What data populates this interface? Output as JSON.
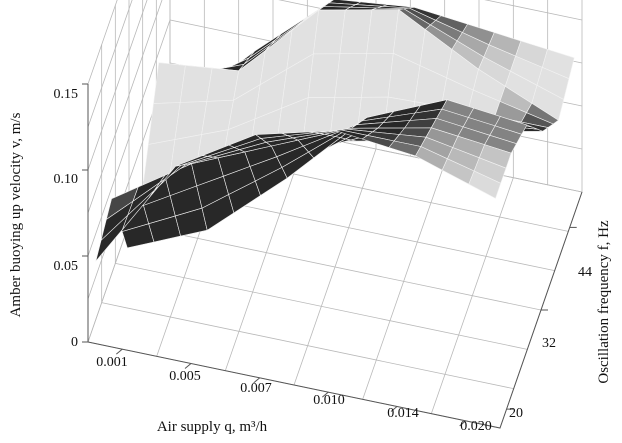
{
  "chart_data": {
    "type": "surface3d",
    "xlabel": "Air supply q, m³/h",
    "ylabel": "Oscillation frequency f, Hz",
    "zlabel": "Amber buoying up velocity v, m/s",
    "x_ticks": [
      "0.001",
      "0.005",
      "0.007",
      "0.010",
      "0.014",
      "0.020"
    ],
    "y_ticks": [
      "20",
      "32",
      "44"
    ],
    "z_ticks": [
      "0",
      "0.05",
      "0.10",
      "0.15"
    ],
    "zlim": [
      0,
      0.15
    ],
    "grid": true,
    "surface": {
      "x_categories": [
        "0.001",
        "0.005",
        "0.007",
        "0.010",
        "0.014",
        "0.020"
      ],
      "y_values": [
        20,
        26,
        32,
        38,
        44,
        50
      ],
      "z": [
        [
          0.045,
          0.11,
          0.138,
          0.15,
          0.145,
          0.13
        ],
        [
          0.055,
          0.085,
          0.105,
          0.125,
          0.135,
          0.13
        ],
        [
          0.0,
          0.02,
          0.06,
          0.105,
          0.125,
          0.12
        ],
        [
          0.01,
          0.035,
          0.055,
          0.065,
          0.08,
          0.09
        ],
        [
          0.055,
          0.06,
          0.105,
          0.115,
          0.09,
          0.07
        ],
        [
          0.0,
          0.045,
          0.085,
          0.09,
          0.085,
          0.08
        ]
      ]
    }
  }
}
